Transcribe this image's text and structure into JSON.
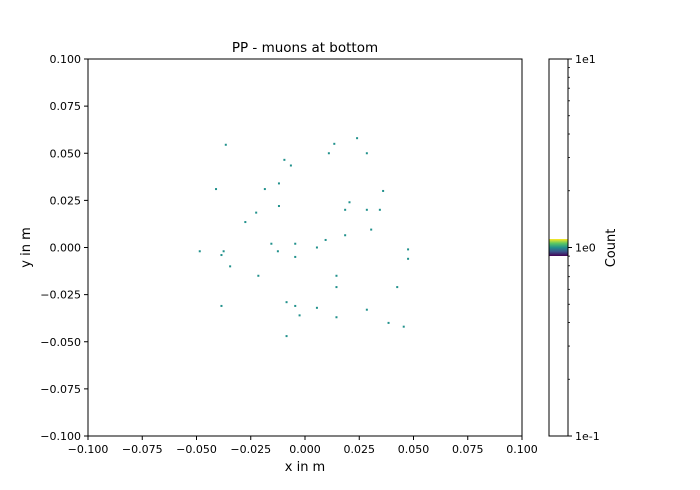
{
  "chart_data": {
    "type": "heatmap",
    "title": "PP - muons at bottom",
    "xlabel": "x in m",
    "ylabel": "y in m",
    "xlim": [
      -0.1,
      0.1
    ],
    "ylim": [
      -0.1,
      0.1
    ],
    "xticks": [
      -0.1,
      -0.075,
      -0.05,
      -0.025,
      0.0,
      0.025,
      0.05,
      0.075,
      0.1
    ],
    "xtick_labels": [
      "−0.100",
      "−0.075",
      "−0.050",
      "−0.025",
      "0.000",
      "0.025",
      "0.050",
      "0.075",
      "0.100"
    ],
    "yticks": [
      0.1,
      0.075,
      0.05,
      0.025,
      0.0,
      -0.025,
      -0.05,
      -0.075,
      -0.1
    ],
    "ytick_labels": [
      "0.100",
      "0.075",
      "0.050",
      "0.025",
      "0.000",
      "−0.025",
      "−0.050",
      "−0.075",
      "−0.100"
    ],
    "grid": false,
    "colorbar": {
      "label": "Count",
      "scale": "log",
      "range": [
        0.1,
        10
      ],
      "tick_labels": [
        "1e1",
        "1e0",
        "1e-1"
      ],
      "tick_values": [
        10,
        1,
        0.1
      ],
      "colormap": "viridis",
      "cell_color": "#21918c"
    },
    "points": [
      {
        "x": -0.0365,
        "y": 0.0545,
        "count": 1
      },
      {
        "x": 0.024,
        "y": 0.058,
        "count": 1
      },
      {
        "x": 0.0135,
        "y": 0.055,
        "count": 1
      },
      {
        "x": 0.011,
        "y": 0.05,
        "count": 1
      },
      {
        "x": 0.0285,
        "y": 0.05,
        "count": 1
      },
      {
        "x": -0.0095,
        "y": 0.0465,
        "count": 1
      },
      {
        "x": -0.0065,
        "y": 0.0435,
        "count": 1
      },
      {
        "x": -0.012,
        "y": 0.034,
        "count": 1
      },
      {
        "x": -0.041,
        "y": 0.031,
        "count": 1
      },
      {
        "x": -0.0185,
        "y": 0.031,
        "count": 1
      },
      {
        "x": 0.036,
        "y": 0.03,
        "count": 1
      },
      {
        "x": 0.0205,
        "y": 0.024,
        "count": 1
      },
      {
        "x": -0.012,
        "y": 0.022,
        "count": 1
      },
      {
        "x": 0.0185,
        "y": 0.02,
        "count": 1
      },
      {
        "x": 0.0285,
        "y": 0.02,
        "count": 1
      },
      {
        "x": 0.0345,
        "y": 0.02,
        "count": 1
      },
      {
        "x": -0.0225,
        "y": 0.0185,
        "count": 1
      },
      {
        "x": -0.0275,
        "y": 0.0135,
        "count": 1
      },
      {
        "x": 0.0305,
        "y": 0.0095,
        "count": 1
      },
      {
        "x": 0.0185,
        "y": 0.0065,
        "count": 1
      },
      {
        "x": 0.0095,
        "y": 0.004,
        "count": 1
      },
      {
        "x": -0.0155,
        "y": 0.002,
        "count": 1
      },
      {
        "x": -0.0045,
        "y": 0.002,
        "count": 1
      },
      {
        "x": 0.0055,
        "y": 0.0,
        "count": 1
      },
      {
        "x": -0.0375,
        "y": -0.002,
        "count": 1
      },
      {
        "x": -0.0125,
        "y": -0.002,
        "count": 1
      },
      {
        "x": -0.0485,
        "y": -0.002,
        "count": 1
      },
      {
        "x": 0.0475,
        "y": -0.001,
        "count": 1
      },
      {
        "x": -0.0385,
        "y": -0.004,
        "count": 1
      },
      {
        "x": -0.0045,
        "y": -0.005,
        "count": 1
      },
      {
        "x": 0.0475,
        "y": -0.006,
        "count": 1
      },
      {
        "x": -0.0345,
        "y": -0.01,
        "count": 1
      },
      {
        "x": 0.0145,
        "y": -0.015,
        "count": 1
      },
      {
        "x": -0.0215,
        "y": -0.015,
        "count": 1
      },
      {
        "x": 0.0145,
        "y": -0.021,
        "count": 1
      },
      {
        "x": 0.0425,
        "y": -0.021,
        "count": 1
      },
      {
        "x": -0.0085,
        "y": -0.029,
        "count": 1
      },
      {
        "x": -0.0045,
        "y": -0.031,
        "count": 1
      },
      {
        "x": -0.0385,
        "y": -0.031,
        "count": 1
      },
      {
        "x": 0.0055,
        "y": -0.032,
        "count": 1
      },
      {
        "x": 0.0285,
        "y": -0.033,
        "count": 1
      },
      {
        "x": -0.0025,
        "y": -0.036,
        "count": 1
      },
      {
        "x": 0.0145,
        "y": -0.037,
        "count": 1
      },
      {
        "x": 0.0385,
        "y": -0.04,
        "count": 1
      },
      {
        "x": 0.0455,
        "y": -0.042,
        "count": 1
      },
      {
        "x": -0.0085,
        "y": -0.047,
        "count": 1
      }
    ]
  }
}
